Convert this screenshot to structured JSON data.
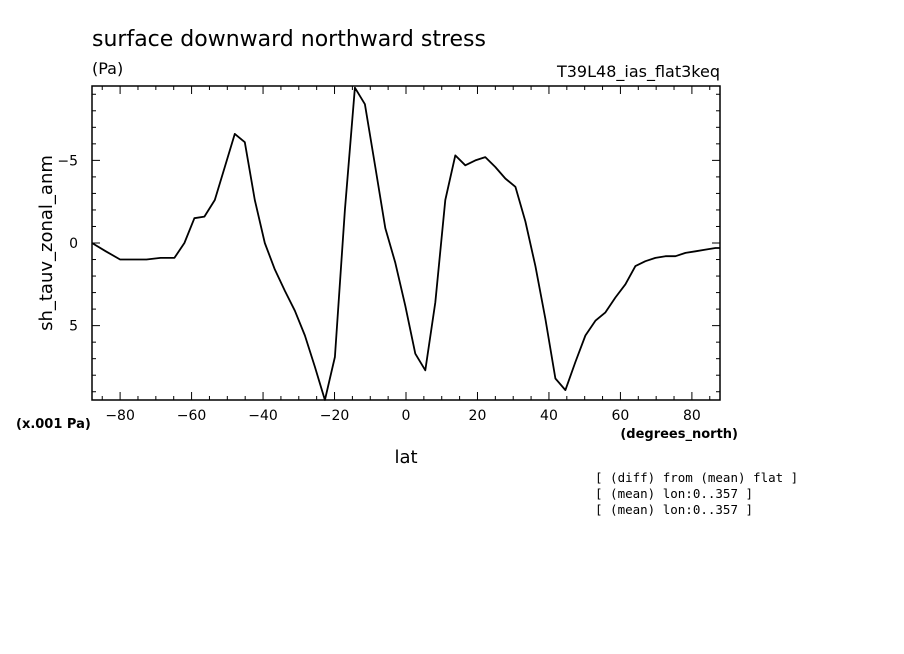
{
  "chart_data": {
    "type": "line",
    "title": "surface downward northward stress",
    "units": "(Pa)",
    "run_label": "T39L48_ias_flat3keq",
    "ylabel": "sh_tauv_zonal_anm",
    "xlabel": "lat",
    "x_units": "(degrees_north)",
    "y_scale_note": "(x.001 Pa)",
    "xlim": [
      -87.8638,
      87.8638
    ],
    "ylim": [
      9.5,
      -9.5
    ],
    "x_ticks": [
      -80,
      -60,
      -40,
      -20,
      0,
      20,
      40,
      60,
      80
    ],
    "x_tick_labels": [
      "−80",
      "−60",
      "−40",
      "−20",
      "0",
      "20",
      "40",
      "60",
      "80"
    ],
    "y_ticks": [
      -5,
      0,
      5
    ],
    "y_tick_labels": [
      "−5",
      "0",
      "5"
    ],
    "grid": false,
    "notes": [
      "[ (diff) from (mean) flat ]",
      "[ (mean) lon:0..357 ]",
      "[ (mean) lon:0..357 ]"
    ],
    "series": [
      {
        "x": [
          -87.8638,
          -84.0,
          -80.0,
          -76.5,
          -72.6,
          -68.7,
          -64.8,
          -62.0,
          -59.2,
          -56.4,
          -53.5,
          -50.7,
          -47.9,
          -45.1,
          -42.3,
          -39.5,
          -36.7,
          -33.9,
          -31.1,
          -28.3,
          -25.5,
          -22.7,
          -19.9,
          -17.1,
          -14.3,
          -11.5,
          -8.6,
          -5.8,
          -3.0,
          -0.2,
          2.6,
          5.4,
          8.2,
          11.0,
          13.8,
          16.6,
          19.4,
          22.2,
          25.0,
          27.8,
          30.6,
          33.4,
          36.2,
          39.0,
          41.8,
          44.6,
          47.4,
          50.2,
          53.0,
          55.8,
          58.6,
          61.4,
          64.2,
          67.0,
          69.8,
          72.6,
          75.4,
          78.2,
          81.0,
          83.8,
          86.6,
          87.8638
        ],
        "y": [
          0.0,
          0.5,
          1.0,
          1.0,
          1.0,
          0.9,
          0.9,
          0.0,
          -1.5,
          -1.6,
          -2.6,
          -4.6,
          -6.6,
          -6.1,
          -2.6,
          0.0,
          1.6,
          2.9,
          4.1,
          5.6,
          7.5,
          9.5,
          6.9,
          -2.0,
          -9.4,
          -8.4,
          -4.6,
          -0.9,
          1.2,
          3.8,
          6.7,
          7.7,
          3.6,
          -2.6,
          -5.3,
          -4.7,
          -5.0,
          -5.2,
          -4.6,
          -3.9,
          -3.4,
          -1.3,
          1.4,
          4.6,
          8.2,
          8.9,
          7.2,
          5.6,
          4.7,
          4.2,
          3.3,
          2.5,
          1.4,
          1.1,
          0.9,
          0.8,
          0.8,
          0.6,
          0.5,
          0.4,
          0.3,
          0.3
        ]
      }
    ]
  }
}
